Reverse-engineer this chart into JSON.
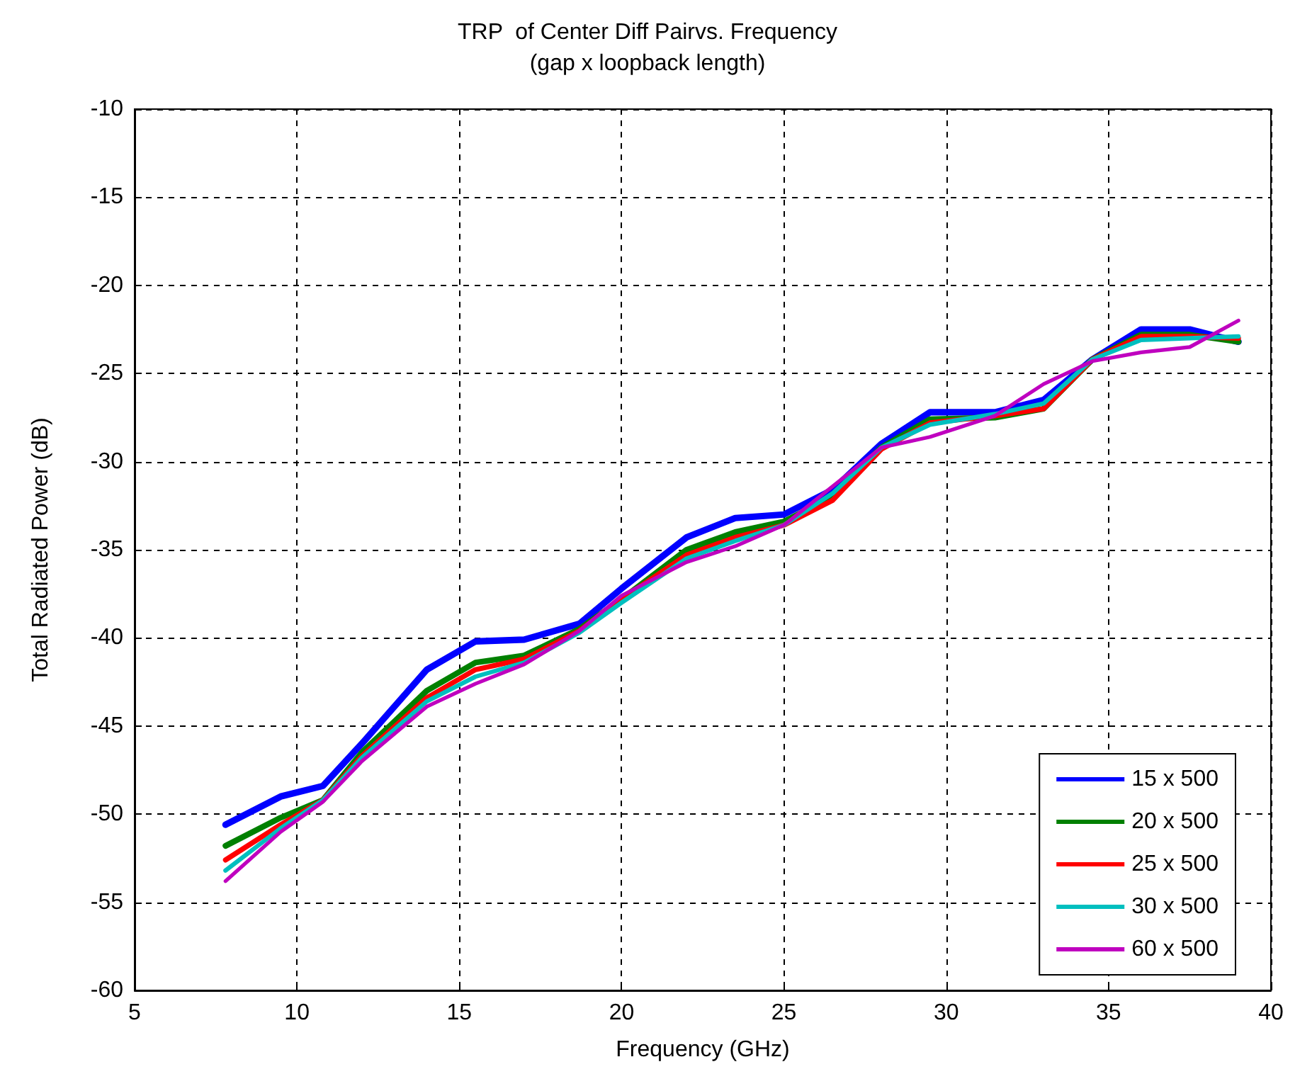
{
  "chart_data": {
    "type": "line",
    "title": "TRP  of Center Diff Pairvs. Frequency",
    "subtitle": "(gap x loopback length)",
    "xlabel": "Frequency (GHz)",
    "ylabel": "Total Radiated Power (dB)",
    "x": [
      7.8,
      9.5,
      10.8,
      12,
      14,
      15.5,
      17,
      18.7,
      20,
      22,
      23.5,
      25,
      26.5,
      28,
      29.5,
      31.5,
      33,
      34.5,
      36,
      37.5,
      39
    ],
    "series": [
      {
        "name": "15 x 500",
        "color": "#0000ff",
        "values": [
          -50.6,
          -49,
          -48.4,
          -46,
          -41.8,
          -40.2,
          -40.1,
          -39.2,
          -37.2,
          -34.3,
          -33.2,
          -33,
          -31.6,
          -29,
          -27.2,
          -27.2,
          -26.5,
          -24.2,
          -22.5,
          -22.5,
          -23.2
        ]
      },
      {
        "name": "20 x 500",
        "color": "#008000",
        "values": [
          -51.8,
          -50.2,
          -49.2,
          -46.5,
          -43,
          -41.4,
          -41,
          -39.5,
          -37.8,
          -35,
          -34,
          -33.4,
          -32,
          -29.2,
          -27.6,
          -27.5,
          -27,
          -24.2,
          -22.8,
          -22.8,
          -23.2
        ]
      },
      {
        "name": "25 x 500",
        "color": "#ff0000",
        "values": [
          -52.6,
          -50.6,
          -49.2,
          -46.7,
          -43.4,
          -41.8,
          -41.2,
          -39.6,
          -37.8,
          -35.3,
          -34.3,
          -33.6,
          -32.2,
          -29.3,
          -27.8,
          -27.4,
          -27,
          -24.2,
          -22.9,
          -22.9,
          -23
        ]
      },
      {
        "name": "30 x 500",
        "color": "#00bfbf",
        "values": [
          -53.2,
          -50.8,
          -49.2,
          -46.8,
          -43.6,
          -42.2,
          -41.4,
          -39.7,
          -38,
          -35.5,
          -34.5,
          -33.6,
          -31.8,
          -29.2,
          -27.9,
          -27.3,
          -26.7,
          -24.2,
          -23.1,
          -23,
          -22.9
        ]
      },
      {
        "name": "60 x 500",
        "color": "#bf00bf",
        "values": [
          -53.8,
          -51,
          -49.3,
          -47,
          -43.9,
          -42.6,
          -41.5,
          -39.6,
          -37.6,
          -35.7,
          -34.8,
          -33.6,
          -31.4,
          -29.2,
          -28.6,
          -27.4,
          -25.6,
          -24.3,
          -23.8,
          -23.5,
          -22
        ]
      }
    ],
    "xlim": [
      5,
      40
    ],
    "xticks": [
      5,
      10,
      15,
      20,
      25,
      30,
      35,
      40
    ],
    "ylim": [
      -60,
      -10
    ],
    "yticks": [
      -60,
      -55,
      -50,
      -45,
      -40,
      -35,
      -30,
      -25,
      -20,
      -15,
      -10
    ],
    "grid": true,
    "legend": "bottom right",
    "marker": "none",
    "line_style": "solid"
  }
}
